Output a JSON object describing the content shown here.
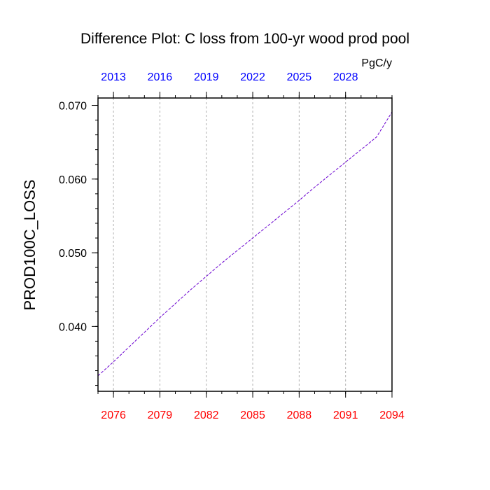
{
  "chart_data": {
    "type": "line",
    "title": "Difference Plot: C loss from 100-yr wood prod pool",
    "units_label": "PgC/y",
    "ylabel": "PROD100C_LOSS",
    "xlim": [
      2075,
      2094
    ],
    "ylim": [
      0.0312,
      0.071
    ],
    "x_bottom_ticks": [
      "2076",
      "2079",
      "2082",
      "2085",
      "2088",
      "2091",
      "2094"
    ],
    "x_top_ticks": [
      "2013",
      "2016",
      "2019",
      "2022",
      "2025",
      "2028"
    ],
    "y_ticks": [
      "0.040",
      "0.050",
      "0.060",
      "0.070"
    ],
    "grid_vertical": true,
    "colors": {
      "bottom_axis_labels": "#ff0000",
      "top_axis_labels": "#0000ff",
      "series_line": "#6a00d0",
      "grid": "#b0b0b0"
    },
    "series": [
      {
        "x": [
          2075,
          2076,
          2077,
          2078,
          2079,
          2080,
          2081,
          2082,
          2083,
          2084,
          2085,
          2086,
          2087,
          2088,
          2089,
          2090,
          2091,
          2092,
          2093,
          2094
        ],
        "y": [
          0.0333,
          0.0352,
          0.0372,
          0.0392,
          0.0412,
          0.0431,
          0.045,
          0.0468,
          0.0486,
          0.0503,
          0.052,
          0.0537,
          0.0554,
          0.0571,
          0.0589,
          0.0606,
          0.0623,
          0.064,
          0.0657,
          0.0691
        ]
      }
    ]
  }
}
